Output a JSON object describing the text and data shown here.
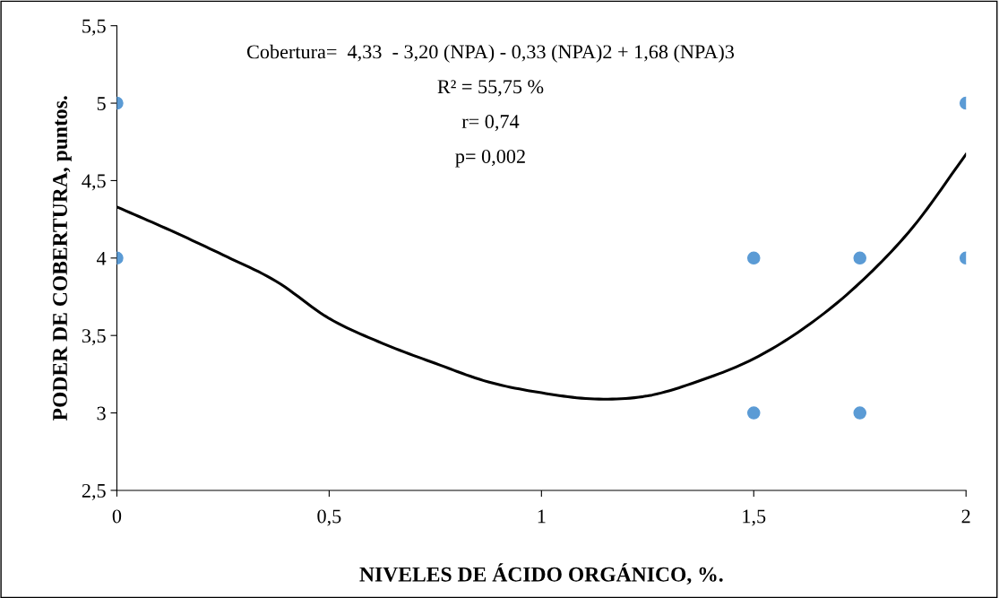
{
  "chart_data": {
    "type": "scatter",
    "xlabel": "NIVELES DE ÁCIDO ORGÁNICO, %.",
    "ylabel": "PODER DE COBERTURA, puntos.",
    "annotations": [
      "Cobertura=  4,33  - 3,20 (NPA) - 0,33 (NPA)2 + 1,68 (NPA)3",
      "R² = 55,75 %",
      "r= 0,74",
      "p= 0,002"
    ],
    "series": [
      {
        "color": "#5b9bd5",
        "marker": "circle",
        "x": [
          0,
          0,
          1.5,
          1.5,
          1.75,
          1.75,
          2,
          2
        ],
        "values": [
          5,
          4,
          4,
          3,
          4,
          3,
          5,
          4
        ]
      },
      {
        "type": "line",
        "color": "#000000",
        "marker": "none",
        "line_style": "solid",
        "x": [
          0,
          0.125,
          0.25,
          0.375,
          0.5,
          0.625,
          0.75,
          0.875,
          1,
          1.125,
          1.25,
          1.375,
          1.5,
          1.625,
          1.75,
          1.875,
          2
        ],
        "values": [
          4.33,
          4.18,
          4.02,
          3.85,
          3.61,
          3.45,
          3.32,
          3.2,
          3.13,
          3.09,
          3.11,
          3.21,
          3.35,
          3.56,
          3.84,
          4.2,
          4.67
        ]
      }
    ],
    "xlim": [
      0,
      2
    ],
    "xticks": [
      0,
      {
        "value": 0.5,
        "label": "0,5"
      },
      1,
      {
        "value": 1.5,
        "label": "1,5"
      },
      2
    ],
    "ylim": [
      2.5,
      5.5
    ],
    "yticks": [
      {
        "value": 2.5,
        "label": "2,5"
      },
      3,
      {
        "value": 3.5,
        "label": "3,5"
      },
      4,
      {
        "value": 4.5,
        "label": "4,5"
      },
      5,
      {
        "value": 5.5,
        "label": "5,5"
      }
    ],
    "grid": false,
    "legend": false
  }
}
